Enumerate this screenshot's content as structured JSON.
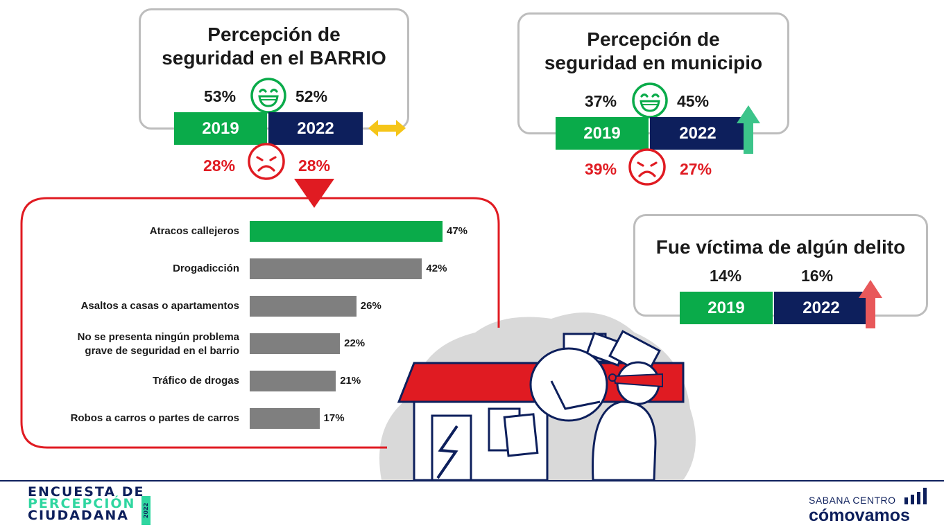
{
  "barrio": {
    "title_line1": "Percepción de",
    "title_line2": "seguridad en el BARRIO",
    "pos_2019": "53%",
    "pos_2022": "52%",
    "neg_2019": "28%",
    "neg_2022": "28%",
    "year_a": "2019",
    "year_b": "2022",
    "trend": "double-arrow-icon"
  },
  "municipio": {
    "title_line1": "Percepción de",
    "title_line2": "seguridad en municipio",
    "pos_2019": "37%",
    "pos_2022": "45%",
    "neg_2019": "39%",
    "neg_2022": "27%",
    "year_a": "2019",
    "year_b": "2022",
    "trend": "up-arrow-icon"
  },
  "victima": {
    "title": "Fue víctima de algún delito",
    "val_2019": "14%",
    "val_2022": "16%",
    "year_a": "2019",
    "year_b": "2022",
    "trend": "up-arrow-icon"
  },
  "chart_data": {
    "type": "bar",
    "orientation": "horizontal",
    "categories": [
      "Atracos callejeros",
      "Drogadicción",
      "Asaltos a casas o apartamentos",
      "No se presenta ningún problema grave de seguridad en el barrio",
      "Tráfico de drogas",
      "Robos a carros o partes de carros"
    ],
    "values": [
      47,
      42,
      26,
      22,
      21,
      17
    ],
    "value_labels": [
      "47%",
      "42%",
      "26%",
      "22%",
      "21%",
      "17%"
    ],
    "colors": [
      "#0aab4a",
      "#7f7f7f",
      "#7f7f7f",
      "#7f7f7f",
      "#7f7f7f",
      "#7f7f7f"
    ],
    "xlim": [
      0,
      47
    ],
    "grid": false
  },
  "footer": {
    "left_line1": "ENCUESTA DE",
    "left_line2": "PERCEPCIÓN",
    "left_line3": "CIUDADANA",
    "left_year": "2022",
    "right_line1": "SABANA CENTRO",
    "right_line2": "cómovamos"
  },
  "colors": {
    "green": "#0aab4a",
    "navy": "#0d1f5c",
    "red": "#e01b22",
    "gray": "#7f7f7f",
    "yellow": "#f5c518",
    "teal": "#3cc48a",
    "salmon": "#e8585a"
  }
}
